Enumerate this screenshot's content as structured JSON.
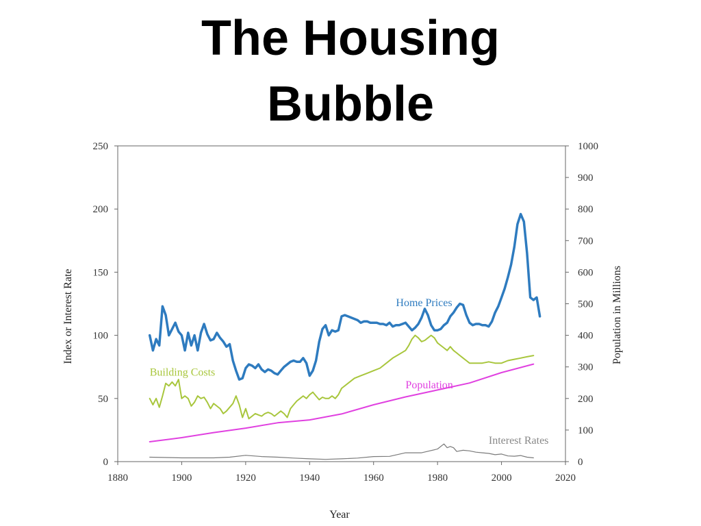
{
  "slide": {
    "title_line1": "The Housing",
    "title_line2": "Bubble"
  },
  "chart_data": {
    "type": "line",
    "xlabel": "Year",
    "ylabel_left": "Index or Interest Rate",
    "ylabel_right": "Population in Millions",
    "xlim": [
      1880,
      2020
    ],
    "ylim_left": [
      0,
      250
    ],
    "ylim_right": [
      0,
      1000
    ],
    "xticks": [
      1880,
      1900,
      1920,
      1940,
      1960,
      1980,
      2000,
      2020
    ],
    "yticks_left": [
      0,
      50,
      100,
      150,
      200,
      250
    ],
    "yticks_right": [
      0,
      100,
      200,
      300,
      400,
      500,
      600,
      700,
      800,
      900,
      1000
    ],
    "grid": false,
    "series": [
      {
        "name": "Home Prices",
        "axis": "left",
        "color": "#2e7bbf",
        "x": [
          1890,
          1891,
          1892,
          1893,
          1894,
          1895,
          1896,
          1897,
          1898,
          1899,
          1900,
          1901,
          1902,
          1903,
          1904,
          1905,
          1906,
          1907,
          1908,
          1909,
          1910,
          1911,
          1912,
          1913,
          1914,
          1915,
          1916,
          1917,
          1918,
          1919,
          1920,
          1921,
          1922,
          1923,
          1924,
          1925,
          1926,
          1927,
          1928,
          1929,
          1930,
          1931,
          1932,
          1933,
          1934,
          1935,
          1936,
          1937,
          1938,
          1939,
          1940,
          1941,
          1942,
          1943,
          1944,
          1945,
          1946,
          1947,
          1948,
          1949,
          1950,
          1951,
          1952,
          1953,
          1954,
          1955,
          1956,
          1957,
          1958,
          1959,
          1960,
          1961,
          1962,
          1963,
          1964,
          1965,
          1966,
          1967,
          1968,
          1969,
          1970,
          1971,
          1972,
          1973,
          1974,
          1975,
          1976,
          1977,
          1978,
          1979,
          1980,
          1981,
          1982,
          1983,
          1984,
          1985,
          1986,
          1987,
          1988,
          1989,
          1990,
          1991,
          1992,
          1993,
          1994,
          1995,
          1996,
          1997,
          1998,
          1999,
          2000,
          2001,
          2002,
          2003,
          2004,
          2005,
          2006,
          2007,
          2008,
          2009,
          2010,
          2011,
          2012
        ],
        "y": [
          100,
          88,
          97,
          92,
          123,
          116,
          100,
          105,
          110,
          103,
          100,
          88,
          102,
          92,
          100,
          88,
          102,
          109,
          101,
          96,
          97,
          102,
          98,
          95,
          91,
          93,
          80,
          72,
          65,
          66,
          74,
          77,
          76,
          74,
          77,
          73,
          71,
          73,
          72,
          70,
          69,
          72,
          75,
          77,
          79,
          80,
          79,
          79,
          82,
          78,
          68,
          72,
          80,
          95,
          105,
          108,
          100,
          104,
          103,
          104,
          115,
          116,
          115,
          114,
          113,
          112,
          110,
          111,
          111,
          110,
          110,
          110,
          109,
          109,
          108,
          110,
          107,
          108,
          108,
          109,
          110,
          107,
          104,
          106,
          109,
          114,
          121,
          116,
          108,
          104,
          104,
          105,
          108,
          110,
          115,
          118,
          122,
          125,
          124,
          116,
          110,
          108,
          109,
          109,
          108,
          108,
          107,
          111,
          118,
          123,
          130,
          137,
          146,
          156,
          170,
          188,
          196,
          190,
          165,
          130,
          128,
          130,
          115
        ]
      },
      {
        "name": "Building Costs",
        "axis": "left",
        "color": "#a8c63c",
        "x": [
          1890,
          1891,
          1892,
          1893,
          1894,
          1895,
          1896,
          1897,
          1898,
          1899,
          1900,
          1901,
          1902,
          1903,
          1904,
          1905,
          1906,
          1907,
          1908,
          1909,
          1910,
          1911,
          1912,
          1913,
          1914,
          1915,
          1916,
          1917,
          1918,
          1919,
          1920,
          1921,
          1922,
          1923,
          1924,
          1925,
          1926,
          1927,
          1928,
          1929,
          1930,
          1931,
          1932,
          1933,
          1934,
          1935,
          1936,
          1937,
          1938,
          1939,
          1940,
          1941,
          1942,
          1943,
          1944,
          1945,
          1946,
          1947,
          1948,
          1949,
          1950,
          1952,
          1954,
          1956,
          1958,
          1960,
          1962,
          1964,
          1966,
          1968,
          1970,
          1971,
          1972,
          1973,
          1974,
          1975,
          1976,
          1977,
          1978,
          1979,
          1980,
          1981,
          1982,
          1983,
          1984,
          1985,
          1986,
          1987,
          1988,
          1989,
          1990,
          1992,
          1994,
          1996,
          1998,
          2000,
          2002,
          2004,
          2006,
          2008,
          2010
        ],
        "y": [
          50,
          45,
          50,
          43,
          52,
          62,
          60,
          63,
          60,
          65,
          50,
          52,
          50,
          44,
          47,
          52,
          50,
          51,
          47,
          42,
          46,
          44,
          42,
          38,
          40,
          43,
          46,
          52,
          45,
          35,
          42,
          34,
          36,
          38,
          37,
          36,
          38,
          39,
          38,
          36,
          38,
          40,
          38,
          35,
          42,
          45,
          48,
          50,
          52,
          50,
          53,
          55,
          52,
          49,
          51,
          50,
          50,
          52,
          50,
          53,
          58,
          62,
          66,
          68,
          70,
          72,
          74,
          78,
          82,
          85,
          88,
          92,
          97,
          100,
          98,
          95,
          96,
          98,
          100,
          98,
          94,
          92,
          90,
          88,
          91,
          88,
          86,
          84,
          82,
          80,
          78,
          78,
          78,
          79,
          78,
          78,
          80,
          81,
          82,
          83,
          84
        ]
      },
      {
        "name": "Population",
        "axis": "right",
        "color": "#e040e0",
        "x": [
          1890,
          1900,
          1910,
          1920,
          1930,
          1940,
          1950,
          1960,
          1970,
          1980,
          1990,
          2000,
          2010
        ],
        "y": [
          63,
          76,
          92,
          106,
          123,
          132,
          151,
          180,
          205,
          227,
          249,
          282,
          309
        ]
      },
      {
        "name": "Interest Rates",
        "axis": "left",
        "color": "#7a7a7a",
        "x": [
          1890,
          1900,
          1910,
          1915,
          1920,
          1925,
          1930,
          1935,
          1940,
          1945,
          1950,
          1955,
          1960,
          1965,
          1970,
          1975,
          1980,
          1981,
          1982,
          1983,
          1984,
          1985,
          1986,
          1988,
          1990,
          1992,
          1994,
          1996,
          1998,
          2000,
          2002,
          2004,
          2006,
          2008,
          2010
        ],
        "y": [
          3.5,
          3,
          3,
          3.5,
          5,
          4,
          3.5,
          2.8,
          2.2,
          1.8,
          2.2,
          2.8,
          4,
          4.2,
          7,
          7,
          10,
          12,
          14,
          11,
          12,
          11,
          8,
          9,
          8.5,
          7.5,
          7,
          6.5,
          5.5,
          6,
          4.5,
          4.3,
          4.8,
          3.5,
          3
        ]
      }
    ],
    "annotations": [
      {
        "text": "Home Prices",
        "x": 1967,
        "y": 123,
        "axis": "left",
        "color": "#2e7bbf"
      },
      {
        "text": "Building Costs",
        "x": 1890,
        "y": 68,
        "axis": "left",
        "color": "#a8c63c"
      },
      {
        "text": "Population",
        "x": 1970,
        "y": 58,
        "axis": "left",
        "color": "#e040e0"
      },
      {
        "text": "Interest Rates",
        "x": 1996,
        "y": 14,
        "axis": "left",
        "color": "#888888"
      }
    ]
  }
}
